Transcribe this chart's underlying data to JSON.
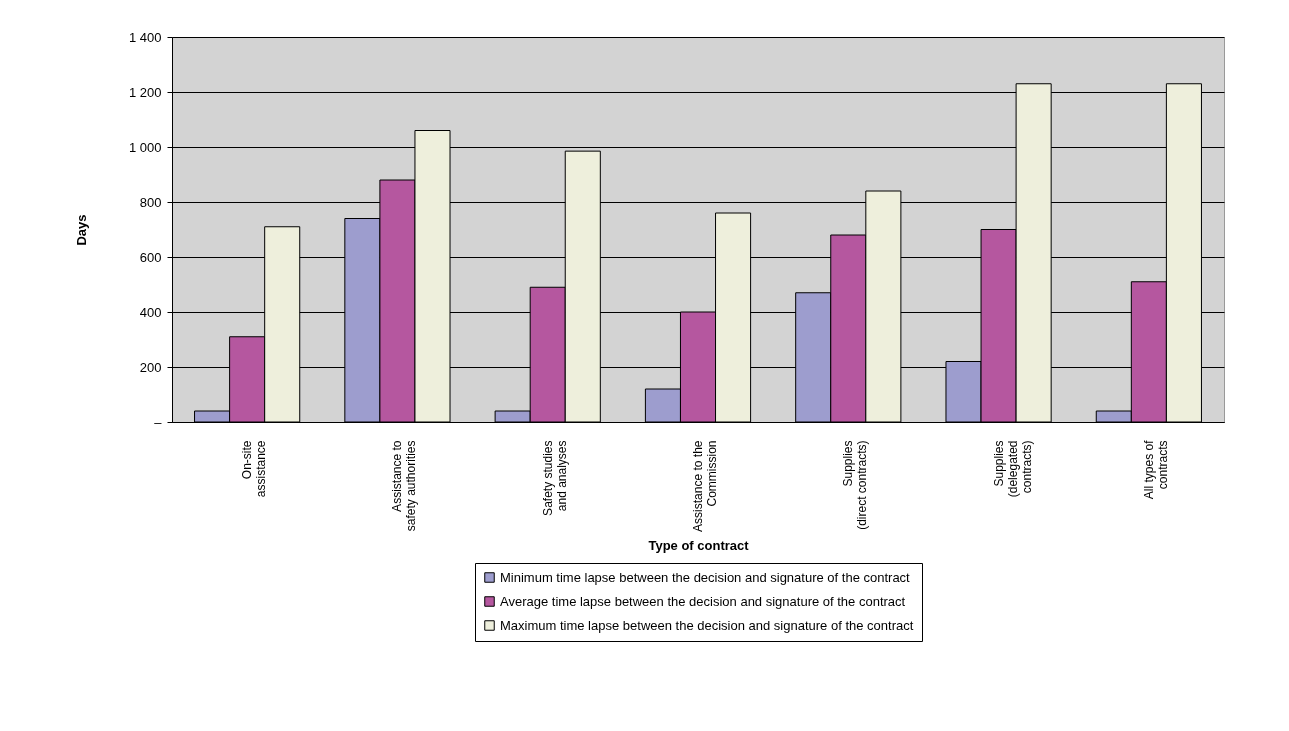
{
  "chart_data": {
    "type": "bar",
    "xlabel": "Type of contract",
    "ylabel": "Days",
    "categories": [
      "On-site\nassistance",
      "Assistance to\nsafety authorities",
      "Safety studies\nand analyses",
      "Assistance to the\nCommission",
      "Supplies\n(direct contracts)",
      "Supplies\n(delegated\ncontracts)",
      "All types of\ncontracts"
    ],
    "series": [
      {
        "name": "Minimum time lapse between the decision and signature of the contract",
        "color": "#9d9dce",
        "values": [
          40,
          740,
          40,
          120,
          470,
          220,
          40
        ]
      },
      {
        "name": "Average time lapse between the decision and signature of the contract",
        "color": "#b5579f",
        "values": [
          310,
          880,
          490,
          400,
          680,
          700,
          510
        ]
      },
      {
        "name": "Maximum time lapse between the decision and signature of the contract",
        "color": "#eeefdc",
        "values": [
          710,
          1060,
          985,
          760,
          840,
          1230,
          1230
        ]
      }
    ],
    "ylim": [
      0,
      1400
    ],
    "yticks": [
      {
        "value": 0,
        "label": "–"
      },
      200,
      400,
      600,
      800,
      {
        "value": 1000,
        "label": "1 000"
      },
      {
        "value": 1200,
        "label": "1 200"
      },
      {
        "value": 1400,
        "label": "1 400"
      }
    ],
    "grid": "y",
    "legend": "bottom"
  }
}
